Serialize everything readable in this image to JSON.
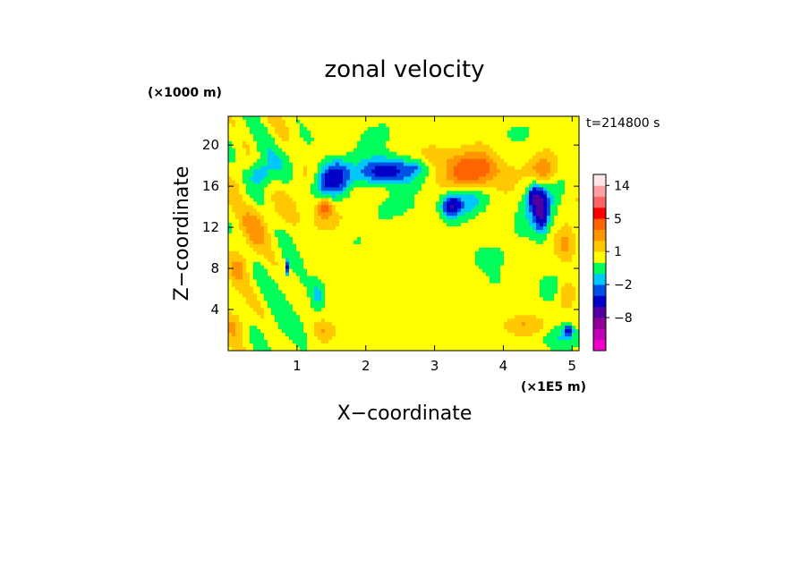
{
  "chart_data": {
    "type": "heatmap",
    "title": "zonal velocity",
    "xlabel": "X−coordinate",
    "ylabel": "Z−coordinate",
    "x_unit": "(×1E5 m)",
    "y_unit": "(×1000 m)",
    "time_label": "t=214800 s",
    "xlim": [
      0,
      5.1
    ],
    "ylim": [
      0,
      22.8
    ],
    "x_ticks": [
      {
        "value": 1,
        "label": "1"
      },
      {
        "value": 2,
        "label": "2"
      },
      {
        "value": 3,
        "label": "3"
      },
      {
        "value": 4,
        "label": "4"
      },
      {
        "value": 5,
        "label": "5"
      }
    ],
    "y_ticks": [
      {
        "value": 4,
        "label": "4"
      },
      {
        "value": 8,
        "label": "8"
      },
      {
        "value": 12,
        "label": "12"
      },
      {
        "value": 16,
        "label": "16"
      },
      {
        "value": 20,
        "label": "20"
      }
    ],
    "background_value": 0.5,
    "colorbar": {
      "levels": [
        {
          "min": -20,
          "max": -14,
          "color": "#f000c8"
        },
        {
          "min": -14,
          "max": -11,
          "color": "#c000b4"
        },
        {
          "min": -11,
          "max": -8,
          "color": "#900096"
        },
        {
          "min": -8,
          "max": -5,
          "color": "#5000a0"
        },
        {
          "min": -5,
          "max": -3,
          "color": "#0000c8"
        },
        {
          "min": -3,
          "max": -2,
          "color": "#0050e6"
        },
        {
          "min": -2,
          "max": -1,
          "color": "#00c8ff"
        },
        {
          "min": -1,
          "max": 0,
          "color": "#00ff5a"
        },
        {
          "min": 0,
          "max": 1,
          "color": "#ffff00"
        },
        {
          "min": 1,
          "max": 2,
          "color": "#ffc800"
        },
        {
          "min": 2,
          "max": 3,
          "color": "#ff9600"
        },
        {
          "min": 3,
          "max": 5,
          "color": "#ff6400"
        },
        {
          "min": 5,
          "max": 8,
          "color": "#ff0000"
        },
        {
          "min": 8,
          "max": 11,
          "color": "#ff6464"
        },
        {
          "min": 11,
          "max": 14,
          "color": "#ffa0a0"
        },
        {
          "min": 14,
          "max": 20,
          "color": "#ffe6e6"
        }
      ],
      "labels": [
        {
          "value": 14,
          "label": "14"
        },
        {
          "value": 5,
          "label": "5"
        },
        {
          "value": 1,
          "label": "1"
        },
        {
          "value": -2,
          "label": "−2"
        },
        {
          "value": -8,
          "label": "−8"
        }
      ]
    },
    "features": [
      {
        "x": 1.55,
        "z": 17.0,
        "rx": 0.22,
        "rz": 1.6,
        "v": -4.2
      },
      {
        "x": 1.35,
        "z": 15.6,
        "rx": 0.2,
        "rz": 1.5,
        "v": -1.8
      },
      {
        "x": 2.35,
        "z": 17.5,
        "rx": 0.32,
        "rz": 1.3,
        "v": -4.5
      },
      {
        "x": 2.05,
        "z": 17.2,
        "rx": 0.18,
        "rz": 1.2,
        "v": -1.6
      },
      {
        "x": 2.7,
        "z": 17.8,
        "rx": 0.14,
        "rz": 0.6,
        "v": -1.5
      },
      {
        "x": 3.6,
        "z": 17.5,
        "rx": 0.42,
        "rz": 1.7,
        "v": 3.8
      },
      {
        "x": 3.4,
        "z": 14.6,
        "rx": 0.38,
        "rz": 1.5,
        "v": -1.8
      },
      {
        "x": 3.25,
        "z": 14.0,
        "rx": 0.12,
        "rz": 0.9,
        "v": -4.0
      },
      {
        "x": 4.55,
        "z": 13.5,
        "rx": 0.1,
        "rz": 1.8,
        "v": -4.5
      },
      {
        "x": 4.45,
        "z": 15.0,
        "rx": 0.08,
        "rz": 1.0,
        "v": -4.0
      },
      {
        "x": 4.5,
        "z": 14.2,
        "rx": 0.3,
        "rz": 3.0,
        "v": -1.6
      },
      {
        "x": 4.6,
        "z": 17.5,
        "rx": 0.2,
        "rz": 1.3,
        "v": 2.5
      },
      {
        "x": 4.9,
        "z": 10.3,
        "rx": 0.15,
        "rz": 1.5,
        "v": 2.0
      },
      {
        "x": 1.4,
        "z": 14.0,
        "rx": 0.1,
        "rz": 1.0,
        "v": 2.6
      },
      {
        "x": 1.35,
        "z": 13.4,
        "rx": 0.26,
        "rz": 2.0,
        "v": 1.6
      },
      {
        "x": 0.5,
        "z": 18.5,
        "rx": 0.22,
        "rz": 2.2,
        "v": -1.5
      },
      {
        "x": 0.45,
        "z": 17.2,
        "rx": 0.15,
        "rz": 1.0,
        "v": -1.8
      },
      {
        "x": 0.35,
        "z": 12.5,
        "rx": 0.25,
        "rz": 2.5,
        "v": 1.6
      },
      {
        "x": 0.15,
        "z": 8.0,
        "rx": 0.15,
        "rz": 1.5,
        "v": 1.6
      },
      {
        "x": 0.85,
        "z": 8.0,
        "rx": 0.03,
        "rz": 0.7,
        "v": -4.0
      },
      {
        "x": 1.3,
        "z": 5.5,
        "rx": 0.1,
        "rz": 1.3,
        "v": -1.6
      },
      {
        "x": 0.85,
        "z": 5.5,
        "rx": 0.35,
        "rz": 4.5,
        "v": -0.5
      },
      {
        "x": 4.9,
        "z": 5.5,
        "rx": 0.14,
        "rz": 1.3,
        "v": 1.6
      },
      {
        "x": 4.7,
        "z": 6.0,
        "rx": 0.15,
        "rz": 1.2,
        "v": -1.5
      },
      {
        "x": 4.95,
        "z": 2.0,
        "rx": 0.06,
        "rz": 0.5,
        "v": -4.0
      },
      {
        "x": 4.85,
        "z": 1.2,
        "rx": 0.25,
        "rz": 1.2,
        "v": -1.6
      },
      {
        "x": 0.1,
        "z": 2.5,
        "rx": 0.2,
        "rz": 1.5,
        "v": 1.6
      },
      {
        "x": 1.4,
        "z": 2.0,
        "rx": 0.15,
        "rz": 1.0,
        "v": 1.6
      },
      {
        "x": 2.1,
        "z": 21.0,
        "rx": 0.5,
        "rz": 2.0,
        "v": -0.5
      },
      {
        "x": 4.1,
        "z": 21.5,
        "rx": 0.4,
        "rz": 1.5,
        "v": -0.5
      },
      {
        "x": 3.95,
        "z": 6.5,
        "rx": 0.6,
        "rz": 3.0,
        "v": -0.5
      },
      {
        "x": 2.6,
        "z": 3.0,
        "rx": 0.8,
        "rz": 1.5,
        "v": -0.5
      },
      {
        "x": 0.75,
        "z": 2.0,
        "rx": 0.4,
        "rz": 2.0,
        "v": -0.5
      },
      {
        "x": 2.6,
        "z": 14.0,
        "rx": 0.7,
        "rz": 1.0,
        "v": -0.5
      },
      {
        "x": 3.7,
        "z": 9.5,
        "rx": 0.3,
        "rz": 1.5,
        "v": -0.5
      },
      {
        "x": 1.75,
        "z": 11.0,
        "rx": 0.3,
        "rz": 2.5,
        "v": -0.5
      },
      {
        "x": 4.3,
        "z": 2.5,
        "rx": 0.3,
        "rz": 1.0,
        "v": 1.6
      },
      {
        "x": 3.0,
        "z": 19.0,
        "rx": 0.2,
        "rz": 1.0,
        "v": 1.6
      }
    ]
  }
}
